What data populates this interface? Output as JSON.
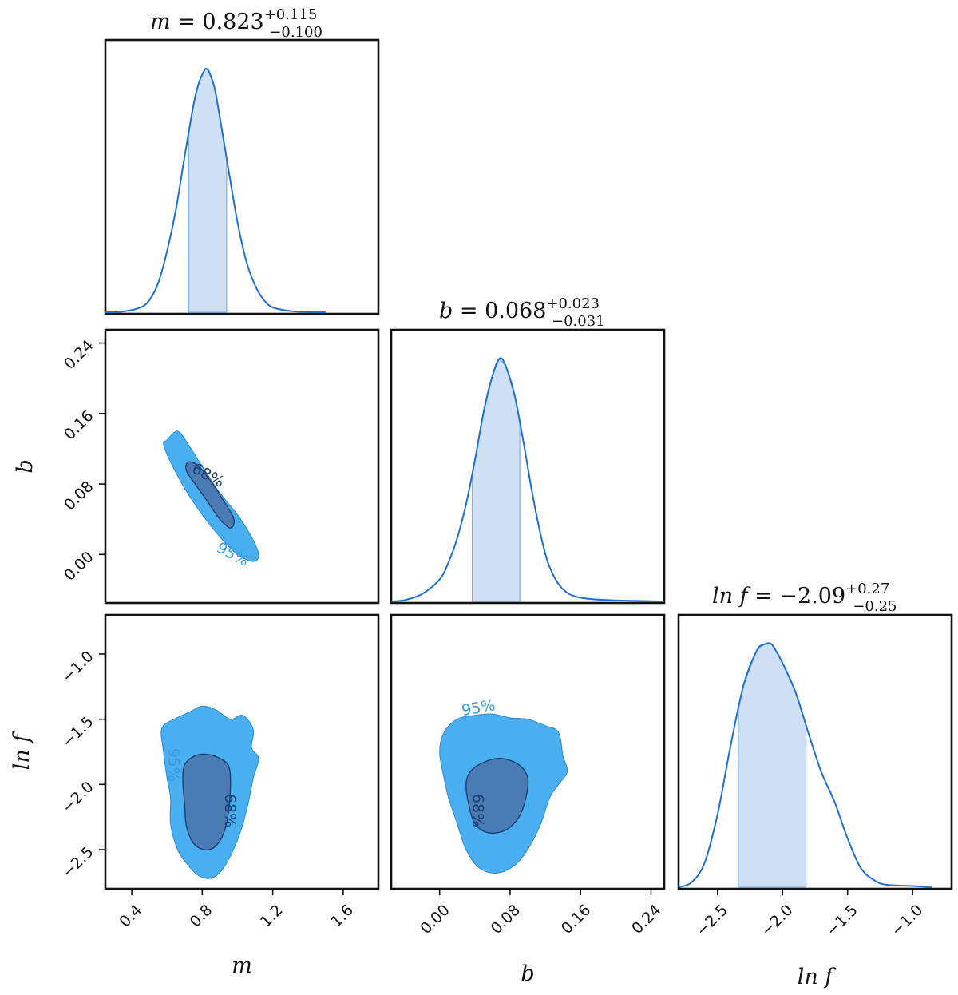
{
  "chart_data": {
    "type": "corner",
    "parameters": [
      {
        "key": "m",
        "label": "m"
      },
      {
        "key": "b",
        "label": "b"
      },
      {
        "key": "lnf",
        "label": "ln f"
      }
    ],
    "titles": [
      {
        "param": "m",
        "prefix": "m = ",
        "value": "0.823",
        "plus": "+0.115",
        "minus": "−0.100"
      },
      {
        "param": "b",
        "prefix": "b = ",
        "value": "0.068",
        "plus": "+0.023",
        "minus": "−0.031"
      },
      {
        "param": "lnf",
        "prefix": "ln f = ",
        "value": "−2.09",
        "plus": "+0.27",
        "minus": "−0.25"
      }
    ],
    "axes": {
      "m": {
        "range": [
          0.25,
          1.8
        ],
        "ticks": [
          0.4,
          0.8,
          1.2,
          1.6
        ],
        "tick_labels": [
          "0.4",
          "0.8",
          "1.2",
          "1.6"
        ]
      },
      "b": {
        "range": [
          -0.055,
          0.255
        ],
        "ticks": [
          0.0,
          0.08,
          0.16,
          0.24
        ],
        "tick_labels": [
          "0.00",
          "0.08",
          "0.16",
          "0.24"
        ]
      },
      "lnf": {
        "range": [
          -2.8,
          -0.7
        ],
        "ticks": [
          -2.5,
          -2.0,
          -1.5,
          -1.0
        ],
        "tick_labels": [
          "−2.5",
          "−2.0",
          "−1.5",
          "−1.0"
        ]
      }
    },
    "marginals": {
      "m": {
        "x": [
          0.25,
          0.35,
          0.45,
          0.5,
          0.55,
          0.6,
          0.65,
          0.7,
          0.75,
          0.78,
          0.81,
          0.823,
          0.84,
          0.87,
          0.9,
          0.95,
          1.0,
          1.05,
          1.1,
          1.15,
          1.2,
          1.3,
          1.4,
          1.5
        ],
        "density": [
          0,
          0.003,
          0.02,
          0.05,
          0.12,
          0.25,
          0.42,
          0.64,
          0.85,
          0.94,
          0.99,
          1.0,
          0.985,
          0.92,
          0.8,
          0.58,
          0.37,
          0.21,
          0.11,
          0.05,
          0.02,
          0.005,
          0.001,
          0
        ],
        "ci": [
          0.723,
          0.938
        ]
      },
      "b": {
        "x": [
          -0.055,
          -0.04,
          -0.02,
          0.0,
          0.01,
          0.02,
          0.03,
          0.04,
          0.05,
          0.06,
          0.068,
          0.075,
          0.085,
          0.095,
          0.105,
          0.115,
          0.125,
          0.14,
          0.16,
          0.2,
          0.255
        ],
        "density": [
          0,
          0.005,
          0.03,
          0.09,
          0.16,
          0.26,
          0.4,
          0.58,
          0.78,
          0.93,
          1.0,
          0.97,
          0.85,
          0.66,
          0.45,
          0.27,
          0.14,
          0.05,
          0.015,
          0.004,
          0
        ],
        "ci": [
          0.037,
          0.091
        ]
      },
      "lnf": {
        "x": [
          -2.8,
          -2.7,
          -2.6,
          -2.5,
          -2.4,
          -2.3,
          -2.2,
          -2.15,
          -2.09,
          -2.05,
          -2.0,
          -1.9,
          -1.8,
          -1.7,
          -1.6,
          -1.5,
          -1.4,
          -1.3,
          -1.2,
          -1.0,
          -0.85
        ],
        "density": [
          0,
          0.02,
          0.1,
          0.3,
          0.58,
          0.83,
          0.97,
          0.995,
          1.0,
          0.97,
          0.92,
          0.8,
          0.63,
          0.47,
          0.35,
          0.2,
          0.08,
          0.03,
          0.01,
          0.005,
          0
        ],
        "ci": [
          -2.34,
          -1.82
        ]
      }
    },
    "contour_levels": [
      "68%",
      "95%"
    ],
    "joint": [
      {
        "x": "m",
        "y": "b",
        "c95": [
          [
            0.6,
            0.13
          ],
          [
            0.66,
            0.14
          ],
          [
            0.72,
            0.125
          ],
          [
            0.8,
            0.1
          ],
          [
            0.9,
            0.07
          ],
          [
            1.0,
            0.045
          ],
          [
            1.08,
            0.02
          ],
          [
            1.12,
            0.0
          ],
          [
            1.09,
            -0.008
          ],
          [
            1.0,
            0.0
          ],
          [
            0.9,
            0.02
          ],
          [
            0.8,
            0.045
          ],
          [
            0.7,
            0.075
          ],
          [
            0.62,
            0.105
          ],
          [
            0.58,
            0.125
          ]
        ],
        "c68": [
          [
            0.72,
            0.105
          ],
          [
            0.78,
            0.1
          ],
          [
            0.86,
            0.08
          ],
          [
            0.93,
            0.058
          ],
          [
            0.98,
            0.04
          ],
          [
            0.96,
            0.03
          ],
          [
            0.9,
            0.04
          ],
          [
            0.83,
            0.06
          ],
          [
            0.76,
            0.08
          ],
          [
            0.71,
            0.095
          ]
        ],
        "label95": {
          "x": 0.96,
          "y": -0.005,
          "angle": 28
        },
        "label68": {
          "x": 0.82,
          "y": 0.085,
          "angle": 28
        }
      },
      {
        "x": "m",
        "y": "lnf",
        "c95": [
          [
            0.57,
            -1.57
          ],
          [
            0.64,
            -1.5
          ],
          [
            0.72,
            -1.45
          ],
          [
            0.8,
            -1.4
          ],
          [
            0.88,
            -1.43
          ],
          [
            0.96,
            -1.5
          ],
          [
            1.03,
            -1.47
          ],
          [
            1.09,
            -1.58
          ],
          [
            1.08,
            -1.72
          ],
          [
            1.12,
            -1.8
          ],
          [
            1.09,
            -1.95
          ],
          [
            1.06,
            -2.15
          ],
          [
            1.02,
            -2.35
          ],
          [
            0.97,
            -2.52
          ],
          [
            0.91,
            -2.66
          ],
          [
            0.85,
            -2.72
          ],
          [
            0.78,
            -2.7
          ],
          [
            0.72,
            -2.62
          ],
          [
            0.66,
            -2.5
          ],
          [
            0.62,
            -2.3
          ],
          [
            0.62,
            -2.1
          ],
          [
            0.6,
            -1.95
          ],
          [
            0.58,
            -1.75
          ]
        ],
        "c68": [
          [
            0.7,
            -1.85
          ],
          [
            0.76,
            -1.78
          ],
          [
            0.83,
            -1.77
          ],
          [
            0.9,
            -1.8
          ],
          [
            0.95,
            -1.86
          ],
          [
            0.96,
            -2.0
          ],
          [
            0.95,
            -2.2
          ],
          [
            0.92,
            -2.38
          ],
          [
            0.87,
            -2.48
          ],
          [
            0.81,
            -2.5
          ],
          [
            0.75,
            -2.45
          ],
          [
            0.71,
            -2.32
          ],
          [
            0.7,
            -2.15
          ],
          [
            0.69,
            -1.98
          ]
        ],
        "label95": {
          "x": 0.61,
          "y": -1.85,
          "angle": 90
        },
        "label68": {
          "x": 0.93,
          "y": -2.2,
          "angle": 90
        }
      },
      {
        "x": "b",
        "y": "lnf",
        "c95": [
          [
            0.005,
            -1.6
          ],
          [
            0.02,
            -1.5
          ],
          [
            0.04,
            -1.47
          ],
          [
            0.06,
            -1.46
          ],
          [
            0.08,
            -1.49
          ],
          [
            0.1,
            -1.5
          ],
          [
            0.12,
            -1.55
          ],
          [
            0.135,
            -1.6
          ],
          [
            0.14,
            -1.78
          ],
          [
            0.145,
            -1.9
          ],
          [
            0.135,
            -2.0
          ],
          [
            0.125,
            -2.1
          ],
          [
            0.115,
            -2.3
          ],
          [
            0.1,
            -2.5
          ],
          [
            0.085,
            -2.62
          ],
          [
            0.065,
            -2.68
          ],
          [
            0.045,
            -2.64
          ],
          [
            0.03,
            -2.5
          ],
          [
            0.02,
            -2.3
          ],
          [
            0.01,
            -2.1
          ],
          [
            0.005,
            -1.95
          ],
          [
            0.0,
            -1.75
          ]
        ],
        "c68": [
          [
            0.035,
            -1.9
          ],
          [
            0.05,
            -1.83
          ],
          [
            0.07,
            -1.8
          ],
          [
            0.09,
            -1.85
          ],
          [
            0.1,
            -1.95
          ],
          [
            0.098,
            -2.1
          ],
          [
            0.09,
            -2.25
          ],
          [
            0.075,
            -2.35
          ],
          [
            0.055,
            -2.37
          ],
          [
            0.04,
            -2.3
          ],
          [
            0.033,
            -2.15
          ],
          [
            0.03,
            -2.0
          ]
        ],
        "label95": {
          "x": 0.045,
          "y": -1.45,
          "angle": -10
        },
        "label68": {
          "x": 0.038,
          "y": -2.2,
          "angle": 90
        }
      }
    ]
  }
}
